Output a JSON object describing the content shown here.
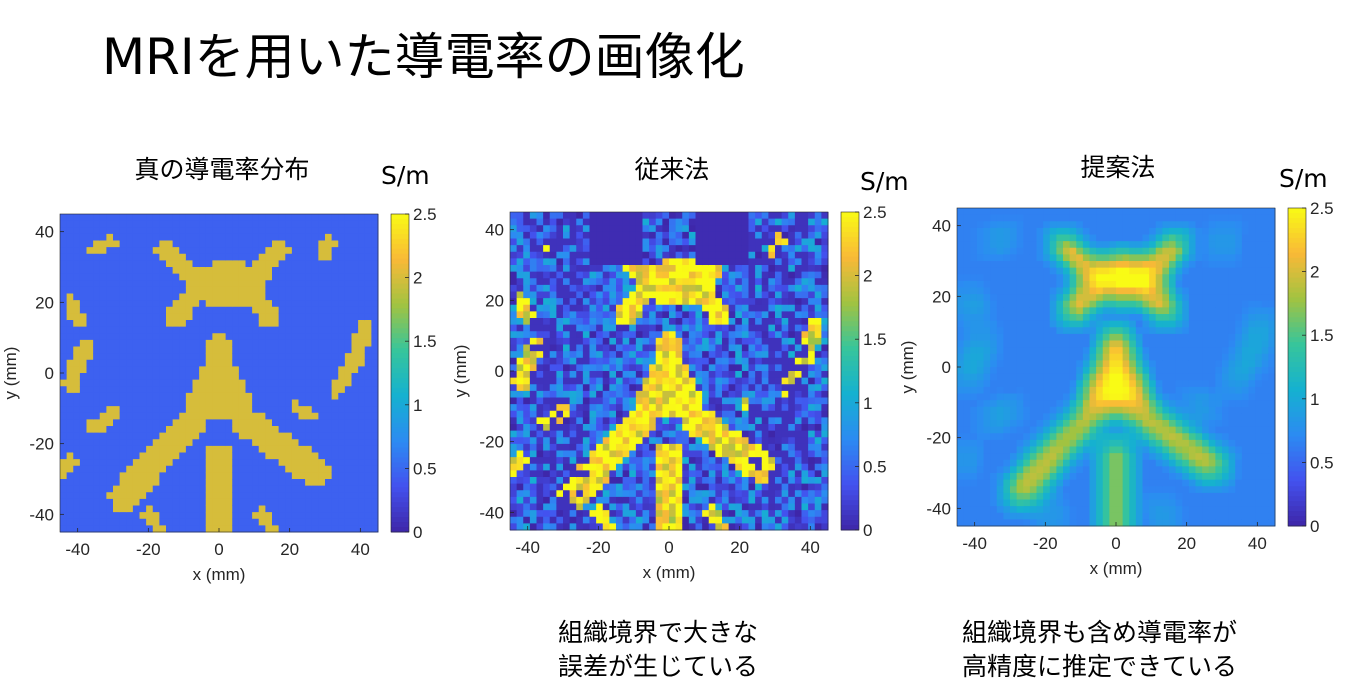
{
  "slide": {
    "title": "MRIを用いた導電率の画像化"
  },
  "chart_data": [
    {
      "type": "heatmap",
      "title": "真の導電率分布",
      "colorbar_label": "S/m",
      "xlabel": "x (mm)",
      "ylabel": "y (mm)",
      "xlim": [
        -45,
        45
      ],
      "ylim": [
        -45,
        45
      ],
      "xticks": [
        "-40",
        "-20",
        "0",
        "20",
        "40"
      ],
      "yticks": [
        "40",
        "20",
        "0",
        "-20",
        "-40"
      ],
      "clim": [
        0,
        2.5
      ],
      "colorbar_ticks": [
        "2.5",
        "2",
        "1.5",
        "1",
        "0.5",
        "0"
      ],
      "colormap": "parula",
      "colormap_stops": [
        "#3e26a8",
        "#4352ef",
        "#2c8bf2",
        "#15b1d0",
        "#37c59b",
        "#a2c341",
        "#f9b937",
        "#f9fb15"
      ],
      "field": {
        "background_value": 0.45,
        "regions": [
          {
            "name": "frontal ventricle horns",
            "value": 2.0
          },
          {
            "name": "third ventricle",
            "value": 2.0
          },
          {
            "name": "posterior ventricle arms",
            "value": 2.0
          },
          {
            "name": "midline posterior",
            "value": 2.0
          },
          {
            "name": "peripheral sulci",
            "value": 2.0
          }
        ],
        "noise": 0.0,
        "blur": false
      },
      "caption": ""
    },
    {
      "type": "heatmap",
      "title": "従来法",
      "colorbar_label": "S/m",
      "xlabel": "x (mm)",
      "ylabel": "y (mm)",
      "xlim": [
        -45,
        45
      ],
      "ylim": [
        -45,
        45
      ],
      "xticks": [
        "-40",
        "-20",
        "0",
        "20",
        "40"
      ],
      "yticks": [
        "40",
        "20",
        "0",
        "-20",
        "-40"
      ],
      "clim": [
        0,
        2.5
      ],
      "colorbar_ticks": [
        "2.5",
        "2",
        "1.5",
        "1",
        "0.5",
        "0"
      ],
      "colormap": "parula",
      "colormap_stops": [
        "#3e26a8",
        "#4352ef",
        "#2c8bf2",
        "#15b1d0",
        "#37c59b",
        "#a2c341",
        "#f9b937",
        "#f9fb15"
      ],
      "field": {
        "background_value": 0.5,
        "regions": [
          {
            "name": "frontal ventricle horns",
            "value": 2.4
          },
          {
            "name": "third ventricle",
            "value": 2.4
          },
          {
            "name": "posterior ventricle arms",
            "value": 2.4
          },
          {
            "name": "midline posterior",
            "value": 2.3
          },
          {
            "name": "peripheral sulci",
            "value": 2.3
          }
        ],
        "noise": 0.55,
        "blur": false
      },
      "caption": [
        "組織境界で大きな",
        "誤差が生じている"
      ]
    },
    {
      "type": "heatmap",
      "title": "提案法",
      "colorbar_label": "S/m",
      "xlabel": "x (mm)",
      "ylabel": "y (mm)",
      "xlim": [
        -45,
        45
      ],
      "ylim": [
        -45,
        45
      ],
      "xticks": [
        "-40",
        "-20",
        "0",
        "20",
        "40"
      ],
      "yticks": [
        "40",
        "20",
        "0",
        "-20",
        "-40"
      ],
      "clim": [
        0,
        2.5
      ],
      "colorbar_ticks": [
        "2.5",
        "2",
        "1.5",
        "1",
        "0.5",
        "0"
      ],
      "colormap": "parula",
      "colormap_stops": [
        "#3e26a8",
        "#4352ef",
        "#2c8bf2",
        "#15b1d0",
        "#37c59b",
        "#a2c341",
        "#f9b937",
        "#f9fb15"
      ],
      "field": {
        "background_value": 0.65,
        "regions": [
          {
            "name": "frontal ventricle horns",
            "value": 2.5
          },
          {
            "name": "third ventricle",
            "value": 2.5
          },
          {
            "name": "posterior ventricle arms",
            "value": 2.0
          },
          {
            "name": "midline posterior",
            "value": 1.9
          },
          {
            "name": "peripheral sulci",
            "value": 1.2
          }
        ],
        "noise": 0.0,
        "blur": true
      },
      "caption": [
        "組織境界も含め導電率が",
        "高精度に推定できている"
      ]
    }
  ]
}
